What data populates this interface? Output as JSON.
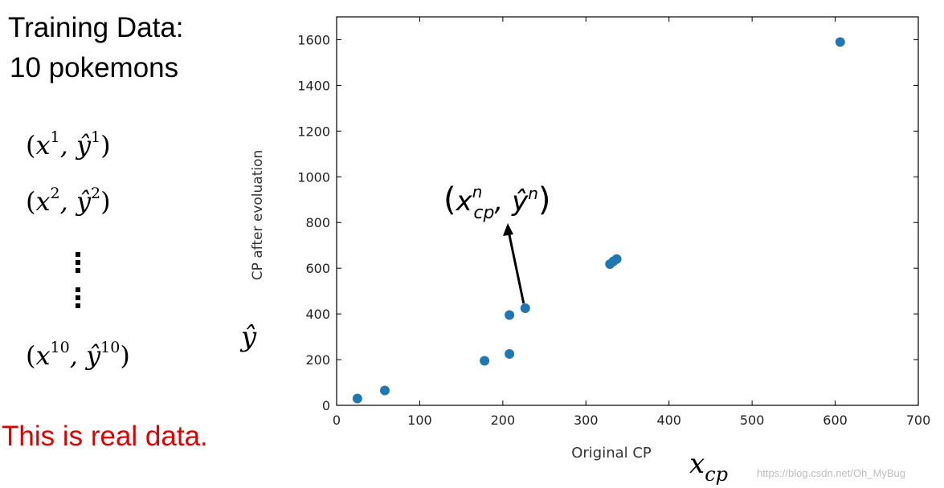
{
  "left_panel": {
    "title_line1": "Training Data:",
    "title_line2": "10 pokemons",
    "pair1": "(x¹, ŷ¹)",
    "pair2": "(x², ŷ²)",
    "pair10": "(x¹⁰, ŷ¹⁰)",
    "note": "This is real data.",
    "note_color": "#e00000"
  },
  "annotation": {
    "point_label": "(x_cp^n, ŷ^n)",
    "y_symbol": "ŷ",
    "x_symbol": "x_cp"
  },
  "watermark": "https://blog.csdn.net/Oh_MyBug",
  "chart_data": {
    "type": "scatter",
    "xlabel": "Original CP",
    "ylabel": "CP after evoluation",
    "xlim": [
      0,
      700
    ],
    "ylim": [
      0,
      1700
    ],
    "xticks": [
      0,
      100,
      200,
      300,
      400,
      500,
      600,
      700
    ],
    "yticks": [
      0,
      200,
      400,
      600,
      800,
      1000,
      1200,
      1400,
      1600
    ],
    "grid": false,
    "marker_color": "#1f77b4",
    "points": [
      {
        "x": 25,
        "y": 30
      },
      {
        "x": 58,
        "y": 65
      },
      {
        "x": 178,
        "y": 195
      },
      {
        "x": 208,
        "y": 225
      },
      {
        "x": 208,
        "y": 395
      },
      {
        "x": 227,
        "y": 425
      },
      {
        "x": 329,
        "y": 618
      },
      {
        "x": 333,
        "y": 630
      },
      {
        "x": 337,
        "y": 640
      },
      {
        "x": 606,
        "y": 1590
      }
    ]
  }
}
